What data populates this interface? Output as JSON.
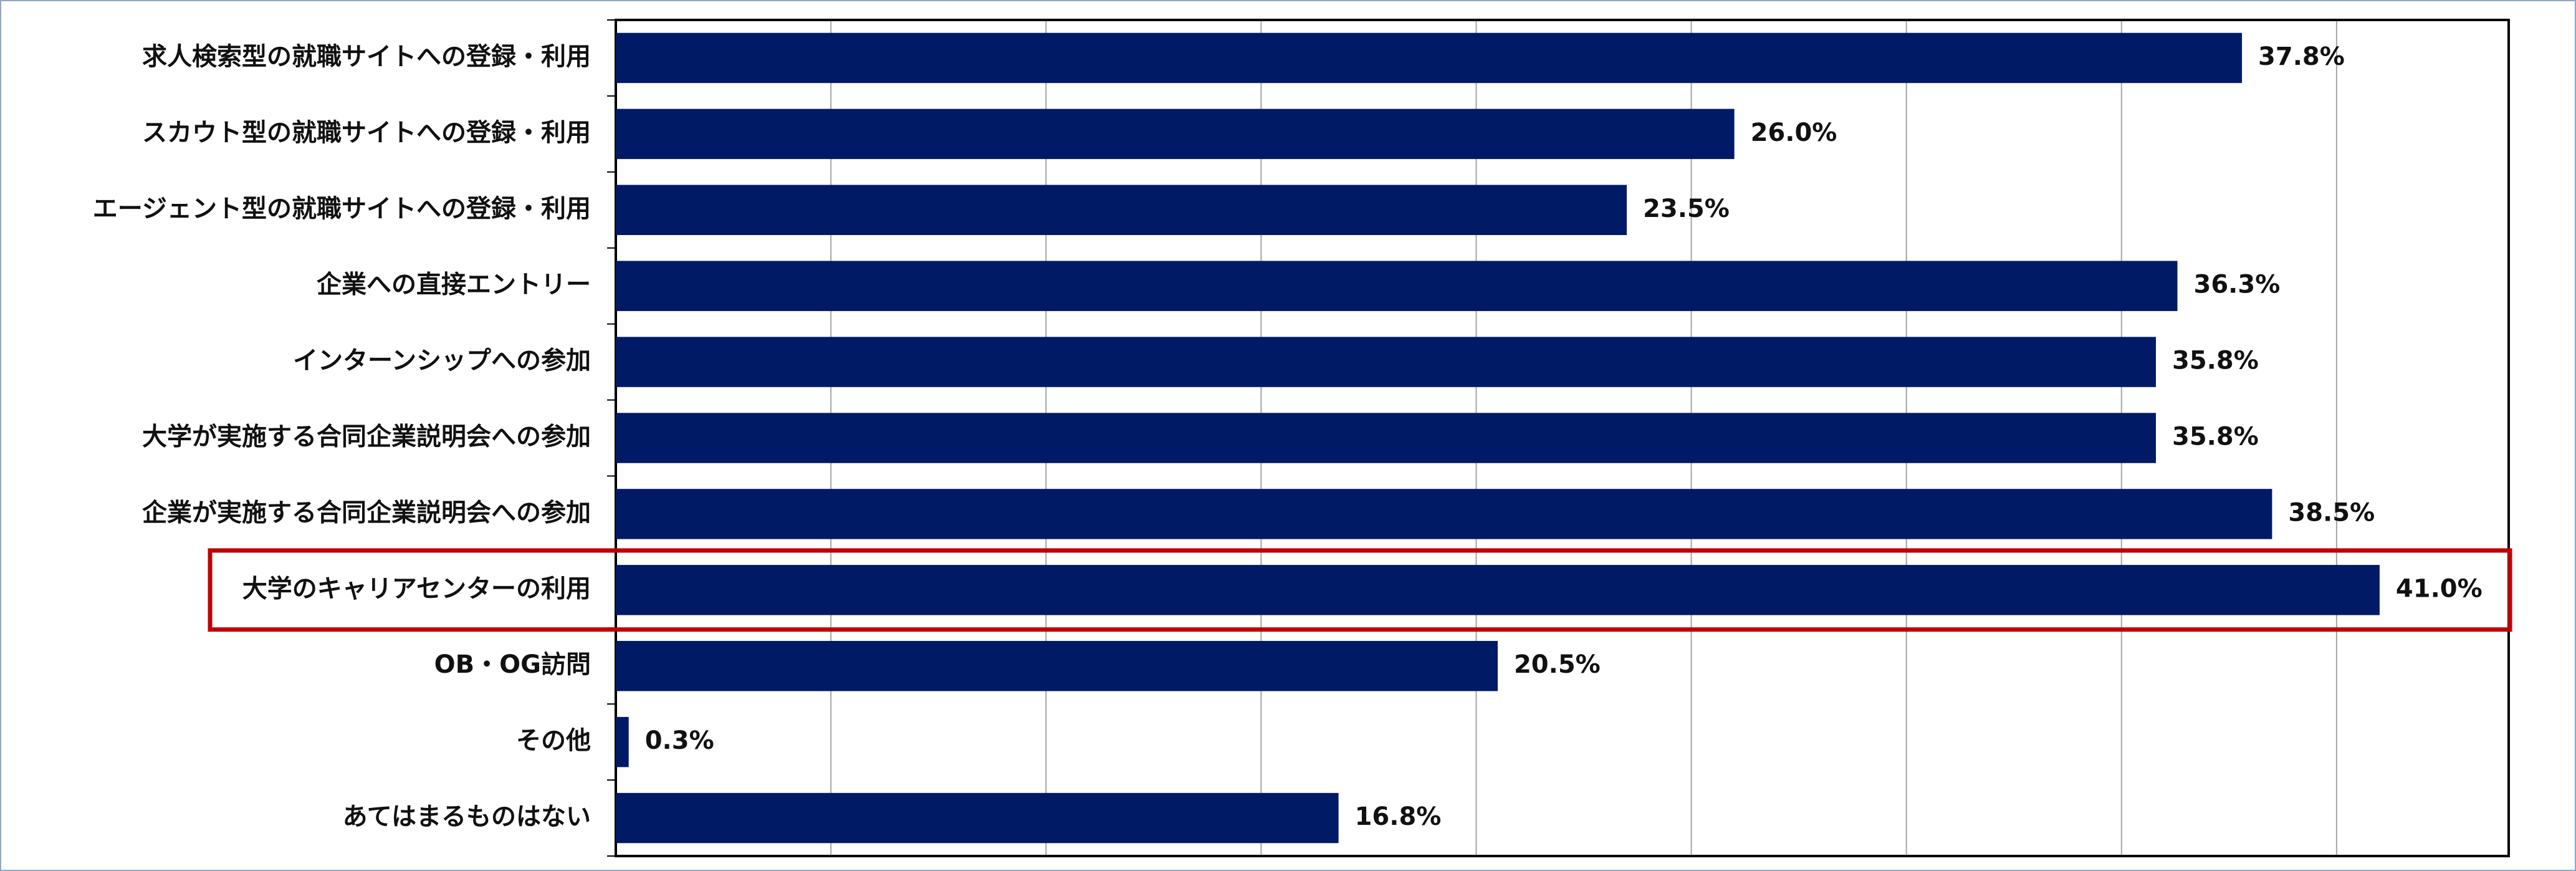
{
  "chart_data": {
    "type": "bar",
    "orientation": "horizontal",
    "categories": [
      "求人検索型の就職サイトへの登録・利用",
      "スカウト型の就職サイトへの登録・利用",
      "エージェント型の就職サイトへの登録・利用",
      "企業への直接エントリー",
      "インターンシップへの参加",
      "大学が実施する合同企業説明会への参加",
      "企業が実施する合同企業説明会への参加",
      "大学のキャリアセンターの利用",
      "OB・OG訪問",
      "その他",
      "あてはまるものはない"
    ],
    "values": [
      37.8,
      26.0,
      23.5,
      36.3,
      35.8,
      35.8,
      38.5,
      41.0,
      20.5,
      0.3,
      16.8
    ],
    "value_labels": [
      "37.8%",
      "26.0%",
      "23.5%",
      "36.3%",
      "35.8%",
      "35.8%",
      "38.5%",
      "41.0%",
      "20.5%",
      "0.3%",
      "16.8%"
    ],
    "color": "#001a66",
    "xlim": [
      0,
      44
    ],
    "xticks": [
      0,
      5,
      10,
      15,
      20,
      25,
      30,
      35,
      40
    ],
    "grid": true,
    "highlight_index": 7,
    "highlight_color": "#c00000"
  }
}
